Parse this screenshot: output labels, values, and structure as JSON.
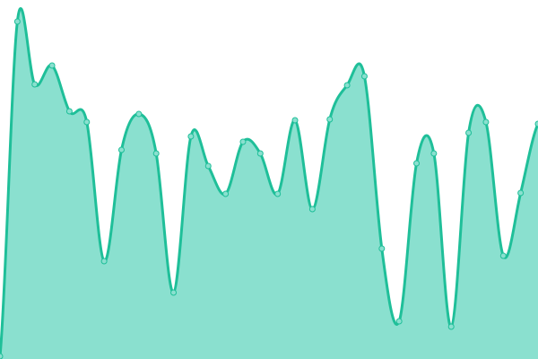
{
  "chart_data": {
    "type": "area",
    "title": "",
    "xlabel": "",
    "ylabel": "",
    "x": [
      0,
      1,
      2,
      3,
      4,
      5,
      6,
      7,
      8,
      9,
      10,
      11,
      12,
      13,
      14,
      15,
      16,
      17,
      18,
      19,
      20,
      21,
      22,
      23,
      24,
      25,
      26,
      27,
      28,
      29,
      30,
      31
    ],
    "values": [
      3,
      376,
      306,
      327,
      276,
      264,
      109,
      233,
      273,
      229,
      74,
      248,
      215,
      184,
      242,
      229,
      184,
      266,
      167,
      267,
      305,
      315,
      123,
      42,
      218,
      229,
      36,
      252,
      264,
      115,
      185,
      262
    ],
    "ylim": [
      0,
      400
    ],
    "grid": false,
    "legend": "none",
    "colors": {
      "line": "#1fbf99",
      "fill": "#8ae0cf",
      "point_fill": "#8ae0cf",
      "point_stroke": "#1fbf99"
    }
  }
}
